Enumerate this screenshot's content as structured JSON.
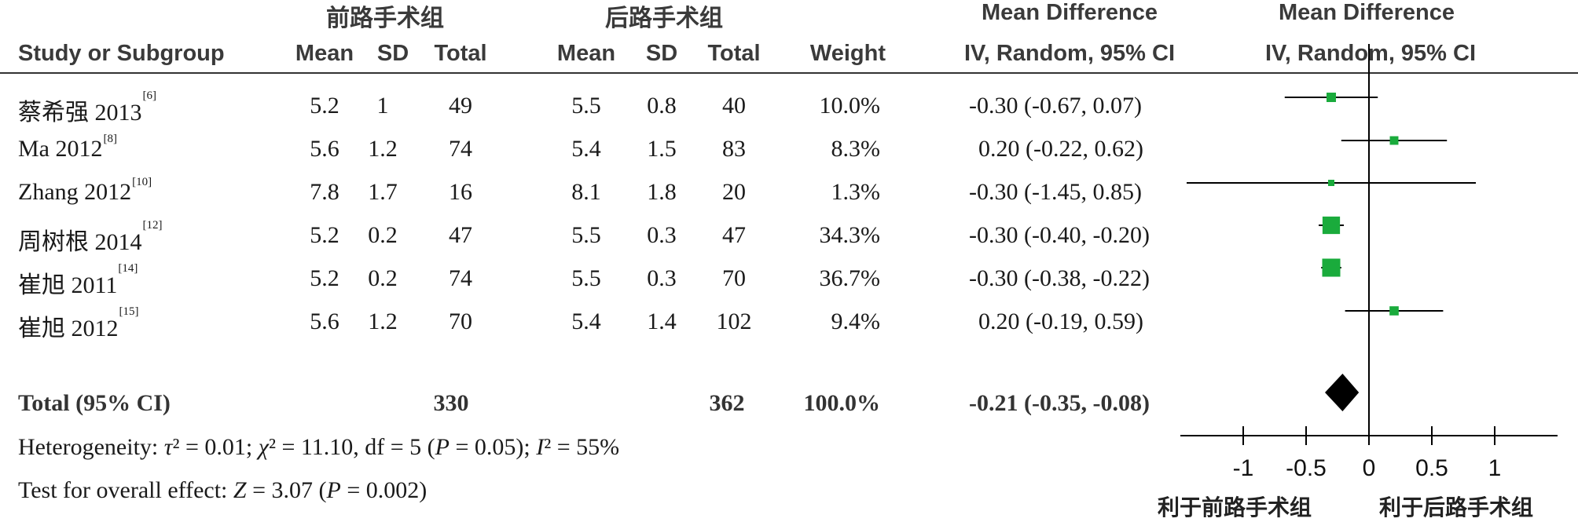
{
  "headers": {
    "group1": "前路手术组",
    "group2": "后路手术组",
    "study_or_subgroup": "Study or Subgroup",
    "mean": "Mean",
    "sd": "SD",
    "total": "Total",
    "weight": "Weight",
    "md_title": "Mean Difference",
    "md_method": "IV, Random, 95% CI"
  },
  "total_row": {
    "label": "Total (95% CI)",
    "total1": "330",
    "total2": "362",
    "weight": "100.0%",
    "ci_text": "-0.21 (-0.35, -0.08)"
  },
  "footer": {
    "het_prefix": "Heterogeneity: ",
    "het_tau": "τ",
    "het_mid1": "² = 0.01; ",
    "het_chi": "χ",
    "het_mid2": "² = 11.10, df = 5 (",
    "het_P": "P",
    "het_mid3": " = 0.05); ",
    "het_I": "I",
    "het_end": "² = 55%",
    "eff_prefix": "Test for overall effect: ",
    "eff_Z": "Z",
    "eff_mid": " = 3.07 (",
    "eff_P": "P",
    "eff_end": " = 0.002)"
  },
  "favours": {
    "left": "利于前路手术组",
    "right": "利于后路手术组"
  },
  "colors": {
    "marker": "#1aab3c",
    "diamond": "#000000",
    "text": "#1a1a1a"
  },
  "chart_data": {
    "type": "forest",
    "xlim": [
      -1.45,
      1.45
    ],
    "ticks": [
      -1,
      -0.5,
      0,
      0.5,
      1
    ],
    "tick_labels": [
      "-1",
      "-0.5",
      "0",
      "0.5",
      "1"
    ],
    "studies": [
      {
        "study": "蔡希强 2013",
        "ref": "[6]",
        "mean1": "5.2",
        "sd1": "1",
        "total1": "49",
        "mean2": "5.5",
        "sd2": "0.8",
        "total2": "40",
        "weight": "10.0%",
        "ci_text": "-0.30 (-0.67, 0.07)",
        "md": -0.3,
        "lo": -0.67,
        "hi": 0.07,
        "w": 10.0
      },
      {
        "study": "Ma 2012",
        "ref": "[8]",
        "mean1": "5.6",
        "sd1": "1.2",
        "total1": "74",
        "mean2": "5.4",
        "sd2": "1.5",
        "total2": "83",
        "weight": "8.3%",
        "ci_text": "0.20 (-0.22, 0.62)",
        "md": 0.2,
        "lo": -0.22,
        "hi": 0.62,
        "w": 8.3
      },
      {
        "study": "Zhang 2012",
        "ref": "[10]",
        "mean1": "7.8",
        "sd1": "1.7",
        "total1": "16",
        "mean2": "8.1",
        "sd2": "1.8",
        "total2": "20",
        "weight": "1.3%",
        "ci_text": "-0.30 (-1.45, 0.85)",
        "md": -0.3,
        "lo": -1.45,
        "hi": 0.85,
        "w": 1.3
      },
      {
        "study": "周树根 2014",
        "ref": "[12]",
        "mean1": "5.2",
        "sd1": "0.2",
        "total1": "47",
        "mean2": "5.5",
        "sd2": "0.3",
        "total2": "47",
        "weight": "34.3%",
        "ci_text": "-0.30 (-0.40, -0.20)",
        "md": -0.3,
        "lo": -0.4,
        "hi": -0.2,
        "w": 34.3
      },
      {
        "study": "崔旭 2011",
        "ref": "[14]",
        "mean1": "5.2",
        "sd1": "0.2",
        "total1": "74",
        "mean2": "5.5",
        "sd2": "0.3",
        "total2": "70",
        "weight": "36.7%",
        "ci_text": "-0.30 (-0.38, -0.22)",
        "md": -0.3,
        "lo": -0.38,
        "hi": -0.22,
        "w": 36.7
      },
      {
        "study": "崔旭 2012",
        "ref": "[15]",
        "mean1": "5.6",
        "sd1": "1.2",
        "total1": "70",
        "mean2": "5.4",
        "sd2": "1.4",
        "total2": "102",
        "weight": "9.4%",
        "ci_text": "0.20 (-0.19, 0.59)",
        "md": 0.2,
        "lo": -0.19,
        "hi": 0.59,
        "w": 9.4
      }
    ],
    "overall": {
      "md": -0.21,
      "lo": -0.35,
      "hi": -0.08
    }
  }
}
